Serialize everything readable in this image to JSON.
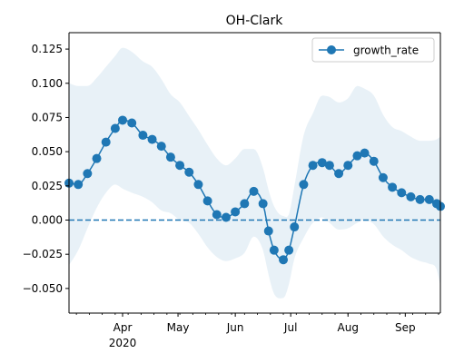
{
  "chart_data": {
    "type": "line",
    "title": "OH-Clark",
    "xlabel": "",
    "ylabel": "",
    "x_start": "2020-03-03",
    "x_end": "2020-09-20",
    "xlim": [
      "2020-03-03",
      "2020-09-20"
    ],
    "ylim": [
      -0.068,
      0.137
    ],
    "y_ticks": [
      -0.05,
      -0.025,
      0.0,
      0.025,
      0.05,
      0.075,
      0.1,
      0.125
    ],
    "y_tick_labels": [
      "−0.050",
      "−0.025",
      "0.000",
      "0.025",
      "0.050",
      "0.075",
      "0.100",
      "0.125"
    ],
    "x_major_ticks": [
      {
        "date": "2020-04-01",
        "label": "Apr",
        "sublabel": "2020"
      },
      {
        "date": "2020-05-01",
        "label": "May",
        "sublabel": ""
      },
      {
        "date": "2020-06-01",
        "label": "Jun",
        "sublabel": ""
      },
      {
        "date": "2020-07-01",
        "label": "Jul",
        "sublabel": ""
      },
      {
        "date": "2020-08-01",
        "label": "Aug",
        "sublabel": ""
      },
      {
        "date": "2020-09-01",
        "label": "Sep",
        "sublabel": ""
      }
    ],
    "reference_line": {
      "y": 0.0,
      "style": "dashed",
      "color": "#1f77b4"
    },
    "legend": {
      "position": "top-right",
      "entries": [
        "growth_rate"
      ]
    },
    "grid": false,
    "series": [
      {
        "name": "growth_rate",
        "color": "#1f77b4",
        "marker": "circle",
        "x": [
          "2020-03-03",
          "2020-03-08",
          "2020-03-13",
          "2020-03-18",
          "2020-03-23",
          "2020-03-28",
          "2020-04-01",
          "2020-04-06",
          "2020-04-12",
          "2020-04-17",
          "2020-04-22",
          "2020-04-27",
          "2020-05-02",
          "2020-05-07",
          "2020-05-12",
          "2020-05-17",
          "2020-05-22",
          "2020-05-27",
          "2020-06-01",
          "2020-06-06",
          "2020-06-11",
          "2020-06-16",
          "2020-06-19",
          "2020-06-22",
          "2020-06-27",
          "2020-06-30",
          "2020-07-03",
          "2020-07-08",
          "2020-07-13",
          "2020-07-18",
          "2020-07-22",
          "2020-07-27",
          "2020-08-01",
          "2020-08-06",
          "2020-08-10",
          "2020-08-15",
          "2020-08-20",
          "2020-08-25",
          "2020-08-30",
          "2020-09-04",
          "2020-09-09",
          "2020-09-14",
          "2020-09-18",
          "2020-09-20"
        ],
        "values": [
          0.027,
          0.026,
          0.034,
          0.045,
          0.057,
          0.067,
          0.073,
          0.071,
          0.062,
          0.059,
          0.054,
          0.046,
          0.04,
          0.035,
          0.026,
          0.014,
          0.004,
          0.002,
          0.006,
          0.012,
          0.021,
          0.012,
          -0.008,
          -0.022,
          -0.029,
          -0.022,
          -0.005,
          0.026,
          0.04,
          0.042,
          0.04,
          0.034,
          0.04,
          0.047,
          0.049,
          0.043,
          0.031,
          0.024,
          0.02,
          0.017,
          0.015,
          0.015,
          0.012,
          0.01
        ],
        "ci_upper": [
          0.1,
          0.098,
          0.098,
          0.104,
          0.112,
          0.12,
          0.126,
          0.123,
          0.116,
          0.112,
          0.103,
          0.092,
          0.086,
          0.076,
          0.066,
          0.055,
          0.045,
          0.04,
          0.045,
          0.052,
          0.052,
          0.038,
          0.022,
          0.01,
          0.003,
          0.004,
          0.025,
          0.062,
          0.078,
          0.091,
          0.09,
          0.086,
          0.089,
          0.098,
          0.096,
          0.091,
          0.077,
          0.068,
          0.065,
          0.061,
          0.058,
          0.058,
          0.059,
          0.061
        ],
        "ci_lower": [
          -0.033,
          -0.022,
          -0.006,
          0.009,
          0.02,
          0.026,
          0.023,
          0.02,
          0.017,
          0.013,
          0.007,
          0.005,
          0.0,
          -0.002,
          -0.01,
          -0.02,
          -0.027,
          -0.03,
          -0.028,
          -0.024,
          -0.012,
          -0.022,
          -0.04,
          -0.054,
          -0.057,
          -0.047,
          -0.028,
          -0.013,
          -0.002,
          0.002,
          -0.002,
          -0.007,
          -0.006,
          -0.002,
          0.0,
          -0.003,
          -0.012,
          -0.018,
          -0.022,
          -0.027,
          -0.03,
          -0.032,
          -0.036,
          -0.048
        ]
      }
    ]
  }
}
